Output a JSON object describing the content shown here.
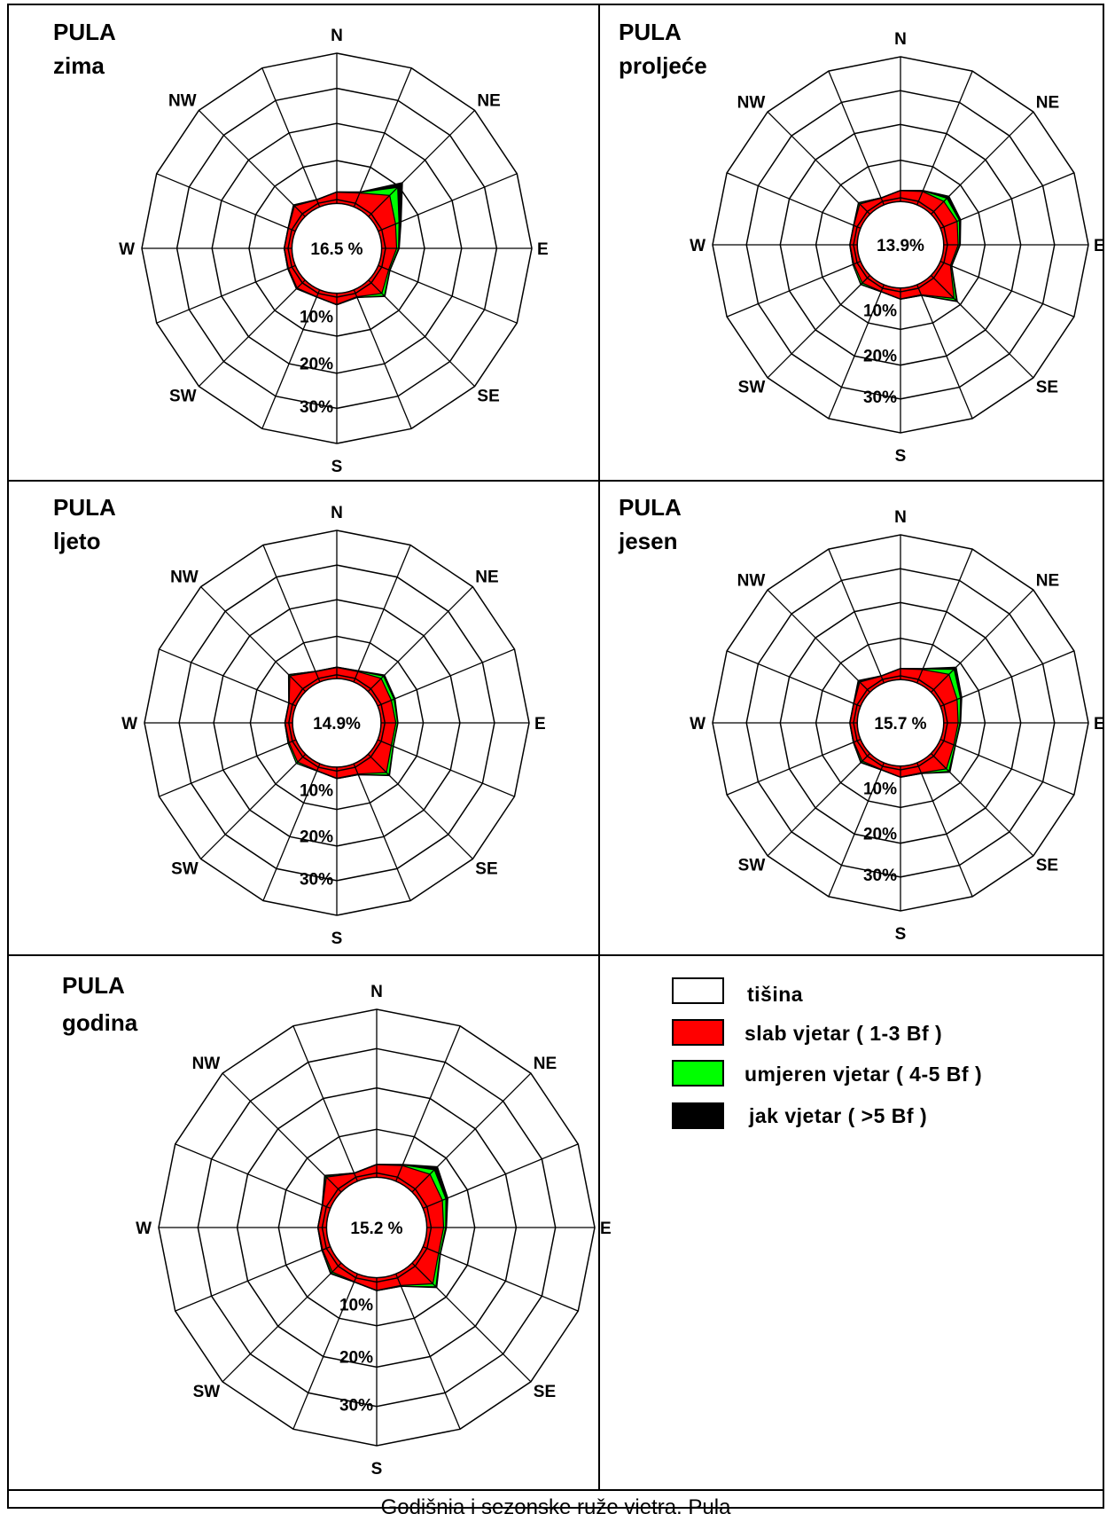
{
  "caption": "Godišnja i sezonske ruže vjetra, Pula",
  "colors": {
    "frame": "#000000",
    "calm": "#ffffff",
    "weak": "#ff0000",
    "moderate": "#00ff00",
    "strong": "#000000"
  },
  "legend": [
    {
      "key": "calm",
      "label": "tišina",
      "color": "#ffffff"
    },
    {
      "key": "weak",
      "label": "slab vjetar ( 1-3 Bf )",
      "color": "#ff0000"
    },
    {
      "key": "moderate",
      "label": "umjeren vjetar ( 4-5 Bf )",
      "color": "#00ff00"
    },
    {
      "key": "strong",
      "label": "jak vjetar ( >5 Bf )",
      "color": "#000000"
    }
  ],
  "chart_data": [
    {
      "type": "wind-rose",
      "station": "PULA",
      "period": "zima",
      "calm_label": "16.5 %",
      "ring_labels": [
        "10%",
        "20%",
        "30%"
      ],
      "direction_labels": [
        "N",
        "NE",
        "E",
        "SE",
        "S",
        "SW",
        "W",
        "NW"
      ],
      "directions": [
        "N",
        "NNE",
        "NE",
        "ENE",
        "E",
        "ESE",
        "SE",
        "SSE",
        "S",
        "SSW",
        "SW",
        "WSW",
        "W",
        "WNW",
        "NW",
        "NNW"
      ],
      "series": [
        {
          "name": "slab vjetar ( 1-3 Bf )",
          "values": [
            3,
            4,
            8,
            5,
            4,
            3,
            5,
            2,
            3,
            2,
            3,
            2,
            2,
            2,
            4,
            2
          ]
        },
        {
          "name": "umjeren vjetar ( 4-5 Bf )",
          "values": [
            0.1,
            0.2,
            3,
            1,
            0.5,
            0.3,
            1,
            0.2,
            0.1,
            0.1,
            0.2,
            0.2,
            0.1,
            0.1,
            0.3,
            0.1
          ]
        },
        {
          "name": "jak vjetar ( >5 Bf )",
          "values": [
            0,
            0.1,
            1.8,
            0.6,
            0.2,
            0.1,
            0.2,
            0,
            0,
            0,
            0.1,
            0,
            0,
            0,
            0.1,
            0
          ]
        }
      ]
    },
    {
      "type": "wind-rose",
      "station": "PULA",
      "period": "proljeće",
      "calm_label": "13.9%",
      "ring_labels": [
        "10%",
        "20%",
        "30%"
      ],
      "direction_labels": [
        "N",
        "NE",
        "E",
        "SE",
        "S",
        "SW",
        "W",
        "NW"
      ],
      "directions": [
        "N",
        "NNE",
        "NE",
        "ENE",
        "E",
        "ESE",
        "SE",
        "SSE",
        "S",
        "SSW",
        "SW",
        "WSW",
        "W",
        "WNW",
        "NW",
        "NNW"
      ],
      "series": [
        {
          "name": "slab vjetar ( 1-3 Bf )",
          "values": [
            3,
            4,
            5,
            5,
            4,
            3,
            9,
            3,
            3,
            2,
            3,
            2,
            2,
            2,
            4,
            2
          ]
        },
        {
          "name": "umjeren vjetar ( 4-5 Bf )",
          "values": [
            0.1,
            0.2,
            1.2,
            0.7,
            0.4,
            0.3,
            1,
            0.2,
            0.1,
            0.1,
            0.5,
            0.3,
            0.1,
            0.1,
            0.4,
            0.1
          ]
        },
        {
          "name": "jak vjetar ( >5 Bf )",
          "values": [
            0,
            0.1,
            0.8,
            0.4,
            0.2,
            0.1,
            0.3,
            0,
            0,
            0,
            0.1,
            0,
            0,
            0,
            0.1,
            0
          ]
        }
      ]
    },
    {
      "type": "wind-rose",
      "station": "PULA",
      "period": "ljeto",
      "calm_label": "14.9%",
      "ring_labels": [
        "10%",
        "20%",
        "30%"
      ],
      "direction_labels": [
        "N",
        "NE",
        "E",
        "SE",
        "S",
        "SW",
        "W",
        "NW"
      ],
      "directions": [
        "N",
        "NNE",
        "NE",
        "ENE",
        "E",
        "ESE",
        "SE",
        "SSE",
        "S",
        "SSW",
        "SW",
        "WSW",
        "W",
        "WNW",
        "NW",
        "NNW"
      ],
      "series": [
        {
          "name": "slab vjetar ( 1-3 Bf )",
          "values": [
            3,
            3,
            5,
            4,
            4,
            4,
            7,
            3,
            3,
            2,
            3,
            2,
            2,
            2,
            6,
            3
          ]
        },
        {
          "name": "umjeren vjetar ( 4-5 Bf )",
          "values": [
            0.1,
            0.2,
            0.9,
            0.8,
            0.5,
            0.5,
            1,
            0.2,
            0.1,
            0.1,
            0.5,
            0.3,
            0.1,
            0.1,
            0.4,
            0.1
          ]
        },
        {
          "name": "jak vjetar ( >5 Bf )",
          "values": [
            0,
            0.1,
            0.4,
            0.3,
            0.1,
            0.1,
            0.2,
            0,
            0,
            0,
            0,
            0,
            0,
            0,
            0.1,
            0
          ]
        }
      ]
    },
    {
      "type": "wind-rose",
      "station": "PULA",
      "period": "jesen",
      "calm_label": "15.7 %",
      "ring_labels": [
        "10%",
        "20%",
        "30%"
      ],
      "direction_labels": [
        "N",
        "NE",
        "E",
        "SE",
        "S",
        "SW",
        "W",
        "NW"
      ],
      "directions": [
        "N",
        "NNE",
        "NE",
        "ENE",
        "E",
        "ESE",
        "SE",
        "SSE",
        "S",
        "SSW",
        "SW",
        "WSW",
        "W",
        "WNW",
        "NW",
        "NNW"
      ],
      "series": [
        {
          "name": "slab vjetar ( 1-3 Bf )",
          "values": [
            3,
            4,
            7,
            5,
            4,
            4,
            6,
            3,
            3,
            2,
            3,
            2,
            2,
            2,
            4,
            2
          ]
        },
        {
          "name": "umjeren vjetar ( 4-5 Bf )",
          "values": [
            0.1,
            0.2,
            2,
            1,
            0.5,
            0.4,
            1,
            0.2,
            0.1,
            0.1,
            0.4,
            0.2,
            0.1,
            0.1,
            0.3,
            0.1
          ]
        },
        {
          "name": "jak vjetar ( >5 Bf )",
          "values": [
            0,
            0.1,
            0.8,
            0.4,
            0.2,
            0.1,
            0.4,
            0,
            0,
            0,
            0.2,
            0,
            0,
            0,
            0.3,
            0
          ]
        }
      ]
    },
    {
      "type": "wind-rose",
      "station": "PULA",
      "period": "godina",
      "calm_label": "15.2 %",
      "ring_labels": [
        "10%",
        "20%",
        "30%"
      ],
      "direction_labels": [
        "N",
        "NE",
        "E",
        "SE",
        "S",
        "SW",
        "W",
        "NW"
      ],
      "directions": [
        "N",
        "NNE",
        "NE",
        "ENE",
        "E",
        "ESE",
        "SE",
        "SSE",
        "S",
        "SSW",
        "SW",
        "WSW",
        "W",
        "WNW",
        "NW",
        "NNW"
      ],
      "series": [
        {
          "name": "slab vjetar ( 1-3 Bf )",
          "values": [
            3,
            4,
            6,
            5,
            4,
            4,
            7,
            3,
            3,
            2,
            3,
            2,
            2,
            2,
            5,
            2
          ]
        },
        {
          "name": "umjeren vjetar ( 4-5 Bf )",
          "values": [
            0.1,
            0.2,
            1.5,
            0.9,
            0.5,
            0.4,
            1,
            0.2,
            0.1,
            0.1,
            0.4,
            0.2,
            0.1,
            0.1,
            0.4,
            0.1
          ]
        },
        {
          "name": "jak vjetar ( >5 Bf )",
          "values": [
            0,
            0.1,
            1,
            0.5,
            0.2,
            0.1,
            0.3,
            0,
            0,
            0,
            0.2,
            0,
            0,
            0,
            0.2,
            0
          ]
        }
      ]
    }
  ]
}
